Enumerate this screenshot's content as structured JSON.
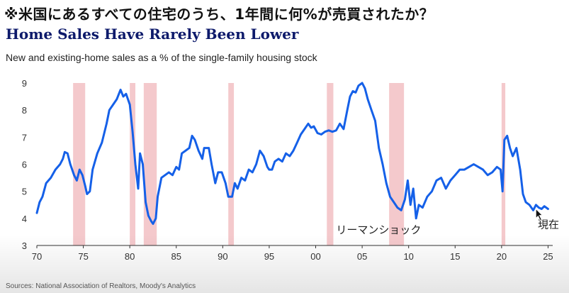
{
  "header": {
    "jp_title": "※米国にあるすべての住宅のうち、1年間に何%が売買されたか？",
    "title": "Home Sales Have Rarely Been Lower",
    "subtitle": "New and existing-home sales as a % of the single-family housing stock"
  },
  "footer": {
    "source": "Sources: National Association of Realtors, Moody's Analytics"
  },
  "colors": {
    "line": "#1560e8",
    "recession": "#f4c9cc"
  },
  "chart_data": {
    "type": "line",
    "title": "Home Sales Have Rarely Been Lower",
    "subtitle": "New and existing-home sales as a % of the single-family housing stock",
    "xlabel": "",
    "ylabel": "",
    "xlim": [
      1970,
      2025.5
    ],
    "ylim": [
      3,
      9
    ],
    "grid": false,
    "x_ticks": [
      {
        "value": 1970,
        "label": "70"
      },
      {
        "value": 1975,
        "label": "75"
      },
      {
        "value": 1980,
        "label": "80"
      },
      {
        "value": 1985,
        "label": "85"
      },
      {
        "value": 1990,
        "label": "90"
      },
      {
        "value": 1995,
        "label": "95"
      },
      {
        "value": 2000,
        "label": "00"
      },
      {
        "value": 2005,
        "label": "05"
      },
      {
        "value": 2010,
        "label": "10"
      },
      {
        "value": 2015,
        "label": "15"
      },
      {
        "value": 2020,
        "label": "20"
      },
      {
        "value": 2025,
        "label": "25"
      }
    ],
    "y_ticks": [
      3,
      4,
      5,
      6,
      7,
      8,
      9
    ],
    "recessions": [
      [
        1973.9,
        1975.2
      ],
      [
        1980.0,
        1980.6
      ],
      [
        1981.5,
        1982.9
      ],
      [
        1990.6,
        1991.2
      ],
      [
        2001.2,
        2001.9
      ],
      [
        2007.9,
        2009.5
      ],
      [
        2020.0,
        2020.4
      ]
    ],
    "annotations": [
      {
        "text": "リーマンショック",
        "x": 2002.2,
        "y": 3.6
      },
      {
        "text": "現在",
        "x": 2023.9,
        "y": 3.8
      }
    ],
    "series": [
      {
        "values": [
          [
            1970.0,
            4.2
          ],
          [
            1970.3,
            4.6
          ],
          [
            1970.6,
            4.8
          ],
          [
            1971.0,
            5.3
          ],
          [
            1971.5,
            5.5
          ],
          [
            1972.0,
            5.8
          ],
          [
            1972.5,
            6.0
          ],
          [
            1972.8,
            6.2
          ],
          [
            1973.0,
            6.45
          ],
          [
            1973.3,
            6.4
          ],
          [
            1973.6,
            6.0
          ],
          [
            1974.0,
            5.6
          ],
          [
            1974.3,
            5.4
          ],
          [
            1974.6,
            5.8
          ],
          [
            1974.9,
            5.6
          ],
          [
            1975.2,
            5.2
          ],
          [
            1975.4,
            4.9
          ],
          [
            1975.7,
            5.0
          ],
          [
            1976.0,
            5.8
          ],
          [
            1976.5,
            6.4
          ],
          [
            1977.0,
            6.8
          ],
          [
            1977.5,
            7.5
          ],
          [
            1977.8,
            8.0
          ],
          [
            1978.2,
            8.2
          ],
          [
            1978.6,
            8.4
          ],
          [
            1979.0,
            8.75
          ],
          [
            1979.3,
            8.5
          ],
          [
            1979.6,
            8.6
          ],
          [
            1980.0,
            8.2
          ],
          [
            1980.3,
            7.2
          ],
          [
            1980.6,
            6.0
          ],
          [
            1980.9,
            5.1
          ],
          [
            1981.1,
            6.4
          ],
          [
            1981.4,
            6.0
          ],
          [
            1981.7,
            4.6
          ],
          [
            1982.0,
            4.1
          ],
          [
            1982.3,
            3.9
          ],
          [
            1982.5,
            3.8
          ],
          [
            1982.8,
            4.0
          ],
          [
            1983.0,
            4.8
          ],
          [
            1983.4,
            5.5
          ],
          [
            1983.8,
            5.6
          ],
          [
            1984.2,
            5.7
          ],
          [
            1984.6,
            5.6
          ],
          [
            1985.0,
            5.9
          ],
          [
            1985.3,
            5.8
          ],
          [
            1985.6,
            6.4
          ],
          [
            1986.0,
            6.5
          ],
          [
            1986.4,
            6.6
          ],
          [
            1986.7,
            7.05
          ],
          [
            1987.0,
            6.9
          ],
          [
            1987.4,
            6.5
          ],
          [
            1987.8,
            6.2
          ],
          [
            1988.0,
            6.6
          ],
          [
            1988.5,
            6.6
          ],
          [
            1988.8,
            6.0
          ],
          [
            1989.2,
            5.3
          ],
          [
            1989.5,
            5.7
          ],
          [
            1989.9,
            5.7
          ],
          [
            1990.3,
            5.3
          ],
          [
            1990.6,
            4.8
          ],
          [
            1991.0,
            4.8
          ],
          [
            1991.3,
            5.3
          ],
          [
            1991.6,
            5.1
          ],
          [
            1992.0,
            5.5
          ],
          [
            1992.4,
            5.4
          ],
          [
            1992.8,
            5.8
          ],
          [
            1993.2,
            5.7
          ],
          [
            1993.6,
            6.0
          ],
          [
            1994.0,
            6.5
          ],
          [
            1994.4,
            6.3
          ],
          [
            1994.8,
            5.9
          ],
          [
            1995.0,
            5.8
          ],
          [
            1995.3,
            5.8
          ],
          [
            1995.6,
            6.1
          ],
          [
            1996.0,
            6.2
          ],
          [
            1996.4,
            6.1
          ],
          [
            1996.8,
            6.4
          ],
          [
            1997.2,
            6.3
          ],
          [
            1997.6,
            6.5
          ],
          [
            1998.0,
            6.8
          ],
          [
            1998.4,
            7.1
          ],
          [
            1998.8,
            7.3
          ],
          [
            1999.2,
            7.5
          ],
          [
            1999.5,
            7.35
          ],
          [
            1999.8,
            7.4
          ],
          [
            2000.2,
            7.15
          ],
          [
            2000.6,
            7.1
          ],
          [
            2001.0,
            7.2
          ],
          [
            2001.4,
            7.25
          ],
          [
            2001.8,
            7.2
          ],
          [
            2002.2,
            7.25
          ],
          [
            2002.6,
            7.5
          ],
          [
            2003.0,
            7.3
          ],
          [
            2003.4,
            8.0
          ],
          [
            2003.7,
            8.5
          ],
          [
            2004.0,
            8.7
          ],
          [
            2004.3,
            8.65
          ],
          [
            2004.6,
            8.9
          ],
          [
            2005.0,
            9.0
          ],
          [
            2005.3,
            8.8
          ],
          [
            2005.6,
            8.4
          ],
          [
            2006.0,
            8.0
          ],
          [
            2006.4,
            7.6
          ],
          [
            2006.8,
            6.6
          ],
          [
            2007.2,
            6.0
          ],
          [
            2007.6,
            5.3
          ],
          [
            2008.0,
            4.8
          ],
          [
            2008.4,
            4.6
          ],
          [
            2008.8,
            4.4
          ],
          [
            2009.2,
            4.3
          ],
          [
            2009.6,
            4.7
          ],
          [
            2009.9,
            5.4
          ],
          [
            2010.2,
            4.5
          ],
          [
            2010.5,
            5.1
          ],
          [
            2010.8,
            4.0
          ],
          [
            2011.1,
            4.5
          ],
          [
            2011.5,
            4.4
          ],
          [
            2012.0,
            4.8
          ],
          [
            2012.5,
            5.0
          ],
          [
            2013.0,
            5.4
          ],
          [
            2013.5,
            5.5
          ],
          [
            2014.0,
            5.1
          ],
          [
            2014.5,
            5.4
          ],
          [
            2015.0,
            5.6
          ],
          [
            2015.5,
            5.8
          ],
          [
            2016.0,
            5.8
          ],
          [
            2016.5,
            5.9
          ],
          [
            2017.0,
            6.0
          ],
          [
            2017.5,
            5.9
          ],
          [
            2018.0,
            5.8
          ],
          [
            2018.5,
            5.6
          ],
          [
            2019.0,
            5.7
          ],
          [
            2019.5,
            5.9
          ],
          [
            2019.9,
            5.8
          ],
          [
            2020.1,
            5.0
          ],
          [
            2020.3,
            6.9
          ],
          [
            2020.6,
            7.05
          ],
          [
            2020.9,
            6.6
          ],
          [
            2021.2,
            6.3
          ],
          [
            2021.6,
            6.6
          ],
          [
            2022.0,
            5.8
          ],
          [
            2022.3,
            4.9
          ],
          [
            2022.6,
            4.6
          ],
          [
            2023.0,
            4.5
          ],
          [
            2023.4,
            4.3
          ],
          [
            2023.7,
            4.5
          ],
          [
            2024.0,
            4.4
          ],
          [
            2024.3,
            4.35
          ],
          [
            2024.6,
            4.45
          ],
          [
            2025.0,
            4.35
          ]
        ]
      }
    ]
  }
}
